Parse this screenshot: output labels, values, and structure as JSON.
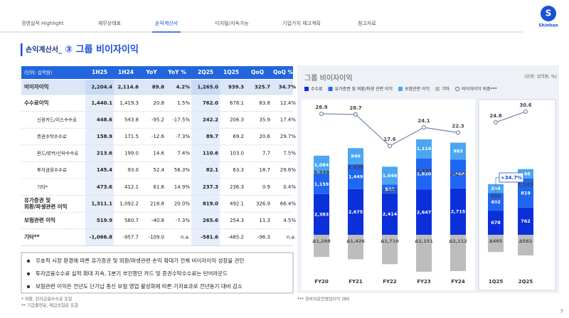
{
  "nav": [
    "경영실적 Highlight",
    "재무상태표",
    "손익계산서",
    "디지털/지속가능",
    "기업가치 제고계획",
    "참고자료"
  ],
  "nav_active": 2,
  "logo": "Shinhan",
  "title": {
    "prefix": "손익계산서_",
    "main": "③ 그룹 비이자이익"
  },
  "table": {
    "columns": [
      "(단위: 십억원)",
      "1H25",
      "1H24",
      "YoY",
      "YoY %",
      "2Q25",
      "1Q25",
      "QoQ",
      "QoQ %"
    ],
    "rows": [
      {
        "label": [
          "비이자이익"
        ],
        "cells": [
          "2,204.4",
          "2,114.6",
          "89.8",
          "4.2%",
          "1,265.0",
          "939.3",
          "325.7",
          "34.7%"
        ]
      },
      {
        "label": [
          "수수료이익"
        ],
        "cells": [
          "1,440.1",
          "1,419.3",
          "20.8",
          "1.5%",
          "762.0",
          "678.1",
          "83.8",
          "12.4%"
        ]
      },
      {
        "label": [
          "신용카드/리스수수료"
        ],
        "cells": [
          "448.6",
          "543.8",
          "-95.2",
          "-17.5%",
          "242.2",
          "206.3",
          "35.9",
          "17.4%"
        ]
      },
      {
        "label": [
          "증권수탁수수료"
        ],
        "cells": [
          "158.9",
          "171.5",
          "-12.6",
          "-7.3%",
          "89.7",
          "69.2",
          "20.6",
          "29.7%"
        ]
      },
      {
        "label": [
          "펀드/방카/신탁수수료"
        ],
        "cells": [
          "213.6",
          "199.0",
          "14.6",
          "7.4%",
          "110.6",
          "103.0",
          "7.7",
          "7.5%"
        ]
      },
      {
        "label": [
          "투자금융수수료"
        ],
        "cells": [
          "145.4",
          "93.0",
          "52.4",
          "56.3%",
          "82.1",
          "63.3",
          "18.7",
          "29.6%"
        ]
      },
      {
        "label": [
          "기타*"
        ],
        "cells": [
          "473.6",
          "412.1",
          "61.6",
          "14.9%",
          "237.3",
          "236.3",
          "0.9",
          "0.4%"
        ]
      },
      {
        "label": [
          "유가증권 및",
          "외환/파생관련 이익"
        ],
        "cells": [
          "1,311.1",
          "1,092.2",
          "218.8",
          "20.0%",
          "819.0",
          "492.1",
          "326.9",
          "66.4%"
        ]
      },
      {
        "label": [
          "보험관련 이익"
        ],
        "cells": [
          "519.9",
          "560.7",
          "-40.8",
          "-7.3%",
          "265.6",
          "254.3",
          "11.3",
          "4.5%"
        ]
      },
      {
        "label": [
          "기타**"
        ],
        "cells": [
          "-1,066.8",
          "-957.7",
          "-109.0",
          "n.a.",
          "-581.6",
          "-485.2",
          "-96.3",
          "n.a."
        ]
      }
    ]
  },
  "bullets": [
    "우호적 시장 환경에 따른 유가증권 및 외환/파생관련 손익 확대가 전체 비이자이익 성장을 견인",
    "투자금융수수료 실적 확대 지속, 1분기 부진했던 카드 및 증권수탁수수료는 턴어라운드",
    "보험관련 이익은 전년도 단기납 종신 보험 영업 활성화에 따른 기저효과로 전년동기 대비 감소"
  ],
  "footnotes": [
    "* 외환, 전자금융수수료 포함",
    "** 기금출연료, 예금보험료 포함"
  ],
  "chart_footnote": "*** 경비차감전영업이익 대비",
  "page_number": "7",
  "chart_data": [
    {
      "type": "bar",
      "stacked": true,
      "title": "그룹 비이자이익",
      "unit": "(단위: 십억원, %)",
      "categories": [
        "FY20",
        "FY21",
        "FY22",
        "FY23",
        "FY24"
      ],
      "series": [
        {
          "name": "수수료",
          "color": "#0b2fd9",
          "values": [
            2383,
            2675,
            2414,
            2647,
            2715
          ],
          "value_labels": [
            "2,383",
            "2,675",
            "2,414",
            "2,647",
            "2,715"
          ]
        },
        {
          "name": "유가증권 및 외환/파생 관련 이익",
          "color": "#1f66f2",
          "values": [
            1159,
            1449,
            521,
            1820,
            1686
          ],
          "value_labels": [
            "1,159",
            "1,449",
            "521",
            "1,820",
            "1,686"
          ]
        },
        {
          "name": "보험관련 이익",
          "color": "#4aa6f2",
          "values": [
            1084,
            940,
            1046,
            1114,
            983
          ],
          "value_labels": [
            "1,084",
            "940",
            "1,046",
            "1,114",
            "983"
          ]
        },
        {
          "name": "기타",
          "color": "#bdbdbd",
          "values": [
            -1288,
            -1426,
            -1710,
            -2151,
            -2112
          ],
          "value_labels": [
            "Δ1,288",
            "Δ1,426",
            "Δ1,710",
            "Δ2,151",
            "Δ2,112"
          ]
        },
        {
          "name": "비이자이익 비중***",
          "type": "line",
          "axis": "y2",
          "color": "#8090aa",
          "values": [
            28.9,
            28.7,
            17.6,
            24.1,
            22.3
          ]
        }
      ],
      "totals": {
        "values": [
          3338,
          3638,
          2271,
          3430,
          3272
        ],
        "value_labels": [
          "3,338",
          "3,638",
          "2,271",
          "3,430",
          "3,272"
        ]
      },
      "ylim": [
        -2900,
        7900
      ],
      "y2lim": [
        -31.1,
        33.9
      ]
    },
    {
      "type": "bar",
      "stacked": true,
      "categories": [
        "1Q25",
        "2Q25"
      ],
      "series": [
        {
          "color": "#0b2fd9",
          "values": [
            678,
            762
          ]
        },
        {
          "color": "#1f66f2",
          "values": [
            492,
            819
          ]
        },
        {
          "color": "#4aa6f2",
          "values": [
            254,
            266
          ]
        },
        {
          "color": "#bdbdbd",
          "values": [
            -485,
            -582
          ],
          "value_labels": [
            "Δ485",
            "Δ582"
          ]
        },
        {
          "type": "line",
          "axis": "y2",
          "color": "#8090aa",
          "values": [
            24.8,
            30.6
          ]
        }
      ],
      "totals": {
        "values": [
          939,
          1265
        ],
        "value_labels": [
          "939",
          "1,265"
        ]
      },
      "annotation": "+34.7%",
      "ylim": [
        -1400,
        3800
      ],
      "y2lim": [
        -62.9,
        37.1
      ]
    }
  ]
}
